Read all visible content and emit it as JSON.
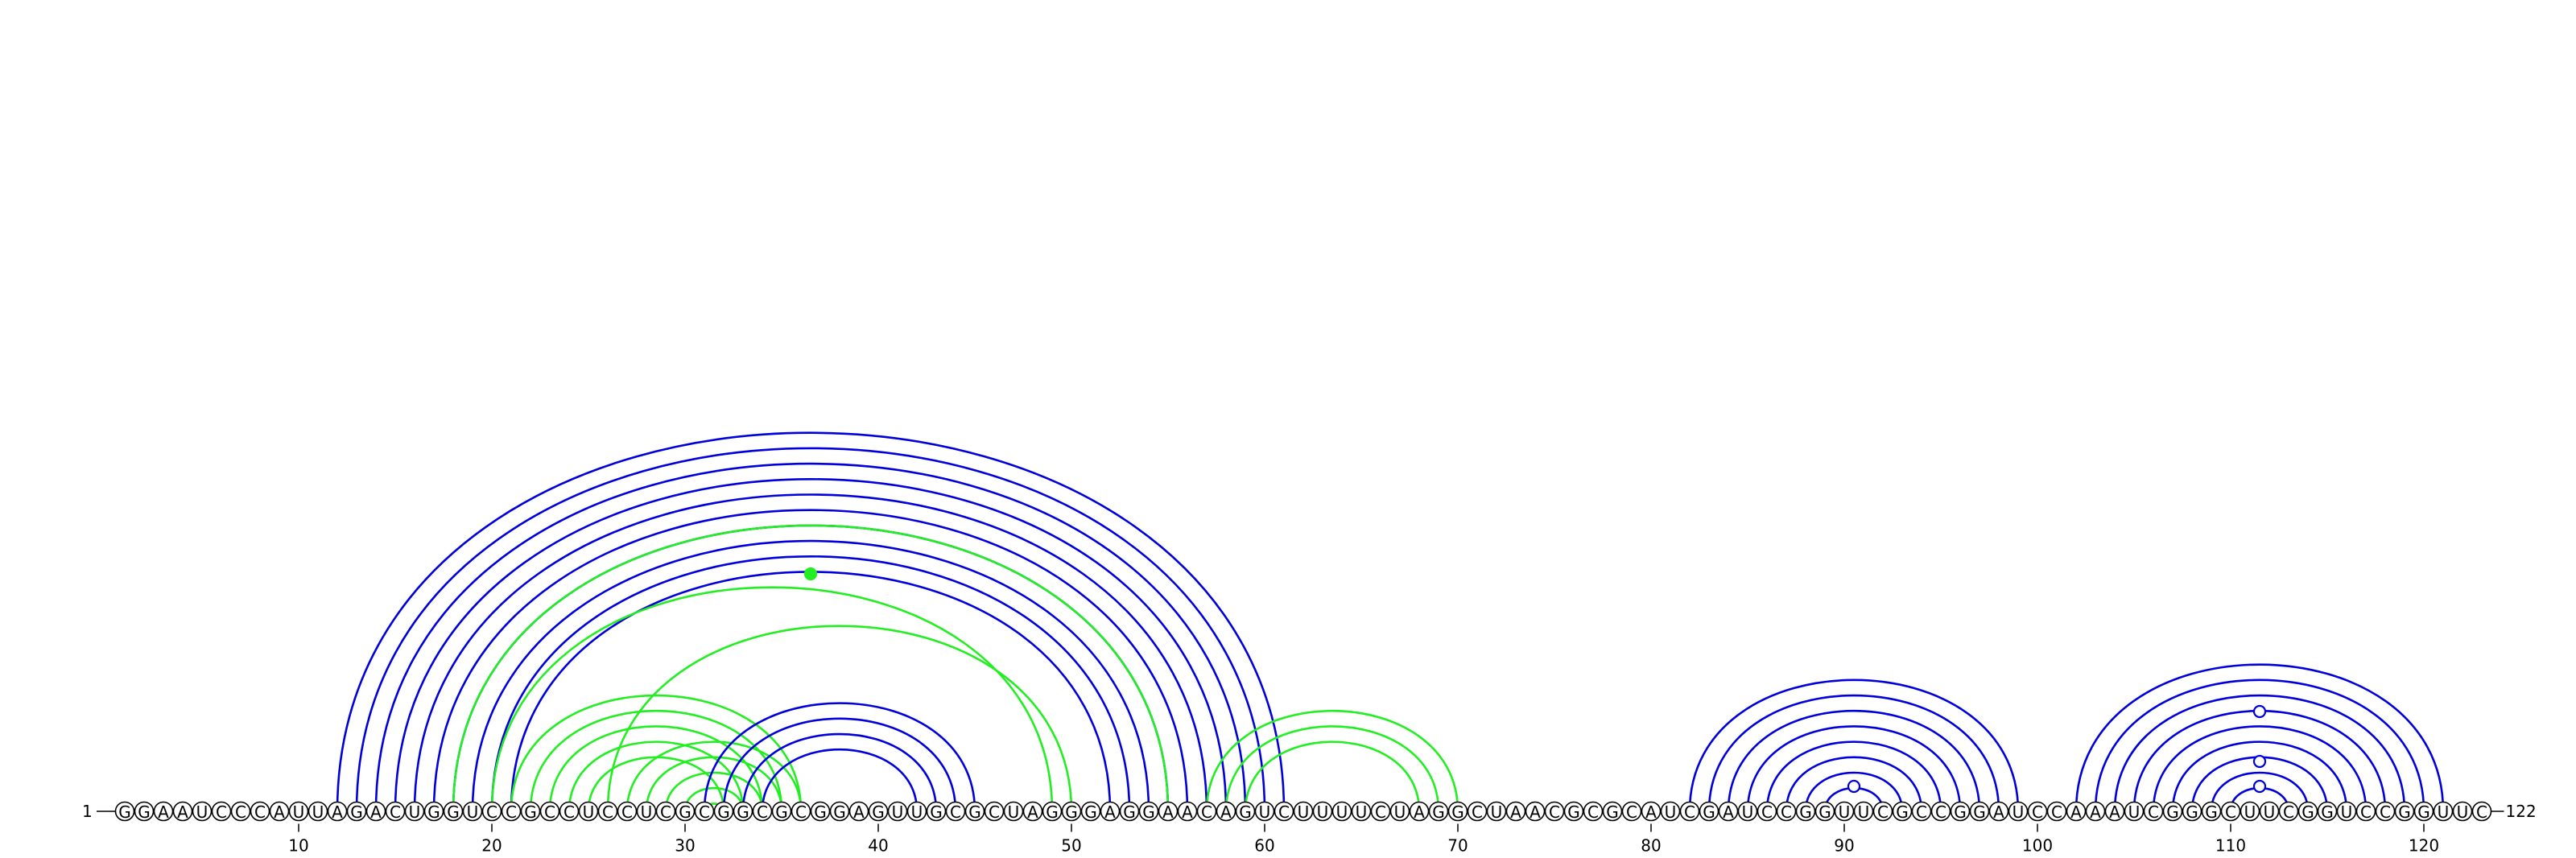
{
  "diagram": {
    "type": "rna-arc-diagram",
    "sequence": "GGAAUCCCAUUAGACUGGUCCGCCUCCUCGCGGCGCGGAGUUGCGCUAGGGAGGAACAGUCUUUUCUAGGCUAACGCGCAUCGAUCCGGUUCGCCGGAUCCAAAUCGGGCUUCGGUCCGGUUC",
    "start_label": "1",
    "end_label": "122",
    "ticks": [
      10,
      20,
      30,
      40,
      50,
      60,
      70,
      80,
      90,
      100,
      110,
      120
    ],
    "colors": {
      "blue": "#0000dd",
      "green": "#22ee22",
      "circle_stroke": "#000000",
      "text": "#000000"
    },
    "arc_groups": [
      {
        "color": "blue",
        "pairs": [
          [
            12,
            61
          ],
          [
            13,
            60
          ],
          [
            14,
            59
          ],
          [
            15,
            58
          ],
          [
            16,
            57
          ],
          [
            17,
            56
          ],
          [
            18,
            55
          ],
          [
            19,
            54
          ],
          [
            20,
            53
          ],
          [
            21,
            52
          ]
        ]
      },
      {
        "color": "green",
        "pairs": [
          [
            18,
            55
          ],
          [
            20,
            49
          ],
          [
            21,
            36
          ],
          [
            22,
            35
          ],
          [
            23,
            34
          ],
          [
            24,
            33
          ],
          [
            25,
            32
          ],
          [
            26,
            50
          ],
          [
            27,
            36
          ],
          [
            28,
            35
          ],
          [
            29,
            34
          ],
          [
            30,
            33
          ],
          [
            31,
            32
          ],
          [
            57,
            70
          ],
          [
            58,
            69
          ],
          [
            59,
            68
          ]
        ]
      },
      {
        "color": "blue",
        "pairs": [
          [
            31,
            45
          ],
          [
            32,
            44
          ],
          [
            33,
            43
          ],
          [
            34,
            42
          ]
        ]
      },
      {
        "color": "blue",
        "pairs": [
          [
            82,
            99
          ],
          [
            83,
            98
          ],
          [
            84,
            97
          ],
          [
            85,
            96
          ],
          [
            86,
            95
          ],
          [
            87,
            94
          ],
          [
            88,
            93
          ],
          [
            89,
            92
          ]
        ]
      },
      {
        "color": "blue",
        "pairs": [
          [
            102,
            121
          ],
          [
            103,
            120
          ],
          [
            104,
            119
          ],
          [
            105,
            118
          ],
          [
            106,
            117
          ],
          [
            107,
            116
          ],
          [
            108,
            115
          ],
          [
            109,
            114
          ],
          [
            110,
            113
          ]
        ]
      }
    ],
    "loop_markers": [
      {
        "position": 36.5,
        "color": "green",
        "filled": true
      },
      {
        "position": 90.5,
        "color": "blue",
        "filled": false
      },
      {
        "position": 111.5,
        "color": "blue",
        "filled": false
      },
      {
        "position": 111.5,
        "color": "blue",
        "filled": false
      },
      {
        "position": 111.5,
        "color": "blue",
        "filled": false
      }
    ]
  }
}
